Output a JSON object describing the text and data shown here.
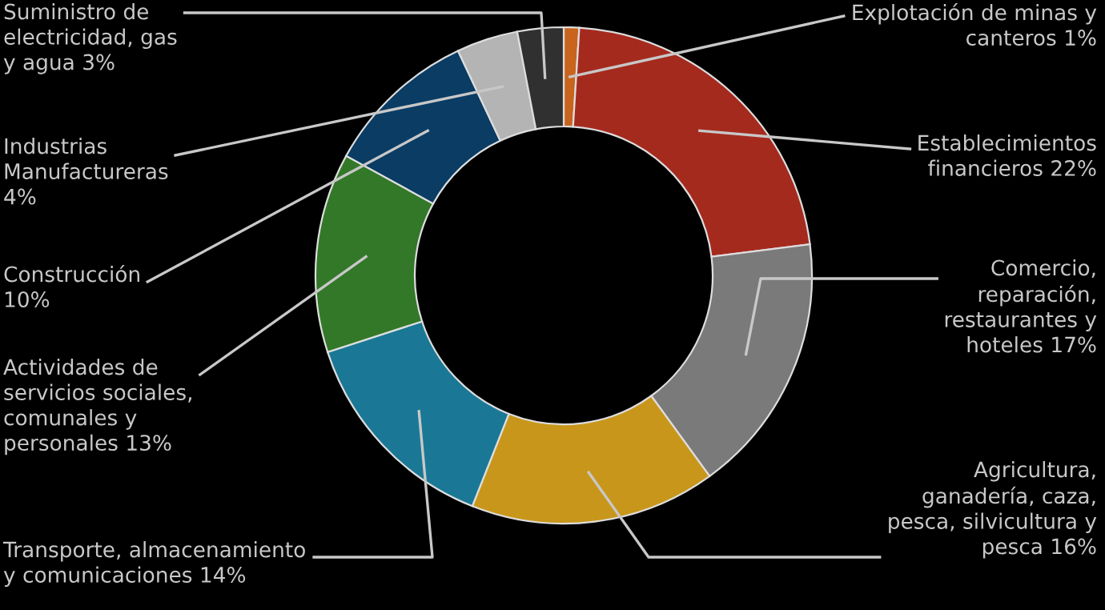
{
  "chart_data": {
    "type": "donut",
    "categories": [
      "Explotación de minas y\ncanteros",
      "Establecimientos\nfinancieros",
      "Comercio,\nreparación,\nrestaurantes y\nhoteles",
      "Agricultura,\nganadería, caza,\npesca, silvicultura y\npesca",
      "Transporte, almacenamiento\ny comunicaciones",
      "Actividades de\nservicios sociales,\ncomunales y\npersonales",
      "Construcción\n",
      "Industrias\nManufactureras\n",
      "Suministro de\nelectricidad, gas\ny agua"
    ],
    "values": [
      1,
      22,
      17,
      16,
      14,
      13,
      10,
      4,
      3
    ],
    "value_labels": [
      "1%",
      "22%",
      "17%",
      "16%",
      "14%",
      "13%",
      "10%",
      "4%",
      "3%"
    ],
    "colors": [
      "#c8641e",
      "#a52a1e",
      "#7a7a7a",
      "#c8961a",
      "#1a7896",
      "#327828",
      "#0a3c64",
      "#b4b4b4",
      "#303030"
    ]
  }
}
